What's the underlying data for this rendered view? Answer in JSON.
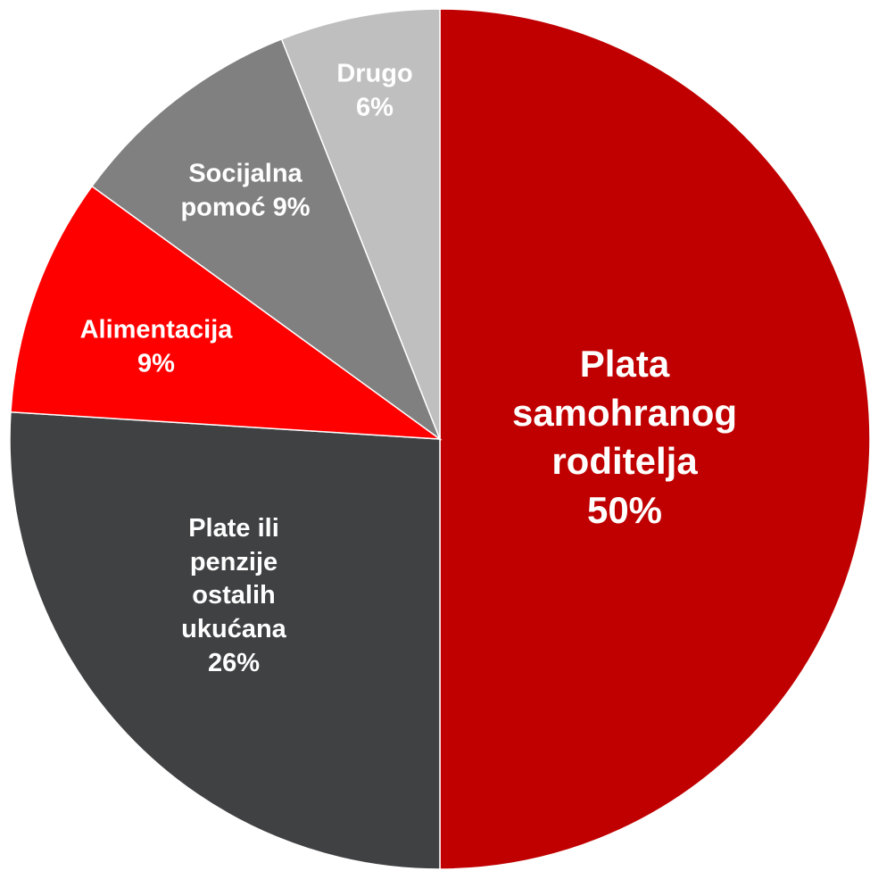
{
  "chart_data": {
    "type": "pie",
    "categories": [
      "Plata samohranog roditelja",
      "Plate ili penzije ostalih ukućana",
      "Alimentacija",
      "Socijalna pomoć",
      "Drugo"
    ],
    "values": [
      50,
      26,
      9,
      9,
      6
    ],
    "value_labels": [
      "50%",
      "26%",
      "9%",
      "9%",
      "6%"
    ],
    "colors": [
      "#c00000",
      "#404143",
      "#ff0000",
      "#808080",
      "#bfbfbf"
    ]
  }
}
